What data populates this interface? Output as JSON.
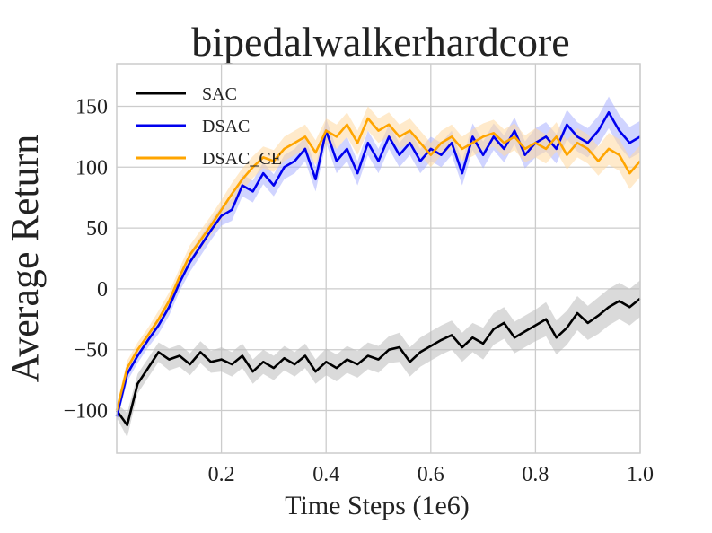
{
  "chart_data": {
    "type": "line",
    "title": "bipedalwalkerhardcore",
    "xlabel": "Time Steps (1e6)",
    "ylabel": "Average Return",
    "xlim": [
      0.0,
      1.0
    ],
    "ylim": [
      -135,
      185
    ],
    "xticks": [
      0.2,
      0.4,
      0.6,
      0.8,
      1.0
    ],
    "xtick_labels": [
      "0.2",
      "0.4",
      "0.6",
      "0.8",
      "1.0"
    ],
    "yticks": [
      -100,
      -50,
      0,
      50,
      100,
      150
    ],
    "ytick_labels": [
      "−100",
      "−50",
      "0",
      "50",
      "100",
      "150"
    ],
    "grid": true,
    "legend_position": "top-left",
    "x": [
      0.0,
      0.02,
      0.04,
      0.06,
      0.08,
      0.1,
      0.12,
      0.14,
      0.16,
      0.18,
      0.2,
      0.22,
      0.24,
      0.26,
      0.28,
      0.3,
      0.32,
      0.34,
      0.36,
      0.38,
      0.4,
      0.42,
      0.44,
      0.46,
      0.48,
      0.5,
      0.52,
      0.54,
      0.56,
      0.58,
      0.6,
      0.62,
      0.64,
      0.66,
      0.68,
      0.7,
      0.72,
      0.74,
      0.76,
      0.78,
      0.8,
      0.82,
      0.84,
      0.86,
      0.88,
      0.9,
      0.92,
      0.94,
      0.96,
      0.98,
      1.0
    ],
    "series": [
      {
        "name": "SAC",
        "color": "#000000",
        "band_color": "#bbbbbb",
        "values": [
          -100,
          -112,
          -78,
          -65,
          -52,
          -58,
          -55,
          -62,
          -52,
          -60,
          -58,
          -62,
          -55,
          -68,
          -60,
          -65,
          -57,
          -62,
          -55,
          -68,
          -60,
          -65,
          -58,
          -62,
          -55,
          -58,
          -50,
          -48,
          -60,
          -52,
          -47,
          -42,
          -38,
          -48,
          -40,
          -45,
          -33,
          -28,
          -40,
          -35,
          -30,
          -25,
          -40,
          -32,
          -20,
          -28,
          -22,
          -15,
          -10,
          -15,
          -8
        ],
        "spread": [
          6,
          10,
          8,
          8,
          8,
          9,
          9,
          9,
          9,
          9,
          10,
          10,
          10,
          10,
          10,
          10,
          10,
          10,
          10,
          10,
          11,
          11,
          11,
          11,
          11,
          11,
          11,
          12,
          12,
          12,
          12,
          12,
          12,
          12,
          12,
          13,
          13,
          13,
          13,
          13,
          13,
          14,
          14,
          14,
          14,
          14,
          15,
          15,
          15,
          15,
          15
        ]
      },
      {
        "name": "DSAC",
        "color": "#0000ee",
        "band_color": "#aab0ff",
        "values": [
          -105,
          -70,
          -55,
          -42,
          -30,
          -15,
          5,
          22,
          35,
          48,
          60,
          65,
          85,
          80,
          95,
          85,
          100,
          105,
          115,
          90,
          130,
          105,
          115,
          95,
          120,
          105,
          125,
          110,
          120,
          105,
          115,
          110,
          120,
          95,
          125,
          110,
          125,
          115,
          130,
          110,
          120,
          125,
          115,
          135,
          125,
          120,
          130,
          145,
          130,
          120,
          125
        ],
        "spread": [
          5,
          6,
          6,
          6,
          7,
          7,
          7,
          8,
          8,
          8,
          8,
          9,
          9,
          9,
          9,
          9,
          10,
          10,
          10,
          10,
          10,
          10,
          10,
          10,
          10,
          10,
          10,
          10,
          10,
          10,
          10,
          10,
          10,
          10,
          11,
          11,
          11,
          11,
          11,
          11,
          12,
          12,
          12,
          12,
          12,
          12,
          12,
          13,
          13,
          13,
          13
        ]
      },
      {
        "name": "DSAC_CE",
        "color": "#ffa500",
        "band_color": "#ffd9a0",
        "values": [
          -100,
          -65,
          -50,
          -38,
          -25,
          -10,
          10,
          28,
          40,
          52,
          65,
          78,
          90,
          100,
          108,
          105,
          115,
          120,
          125,
          112,
          130,
          125,
          135,
          120,
          140,
          130,
          135,
          125,
          130,
          120,
          110,
          120,
          125,
          115,
          120,
          125,
          128,
          120,
          125,
          115,
          120,
          115,
          125,
          110,
          120,
          115,
          105,
          115,
          110,
          95,
          105
        ],
        "spread": [
          5,
          6,
          6,
          6,
          7,
          7,
          7,
          8,
          8,
          8,
          8,
          9,
          9,
          9,
          9,
          9,
          10,
          10,
          10,
          10,
          10,
          10,
          10,
          10,
          10,
          10,
          10,
          10,
          10,
          10,
          10,
          10,
          10,
          10,
          11,
          11,
          11,
          11,
          11,
          11,
          12,
          12,
          12,
          12,
          12,
          12,
          12,
          13,
          13,
          13,
          13
        ]
      }
    ]
  },
  "colors": {
    "grid": "#cccccc",
    "frame": "#cccccc",
    "text": "#222222"
  }
}
